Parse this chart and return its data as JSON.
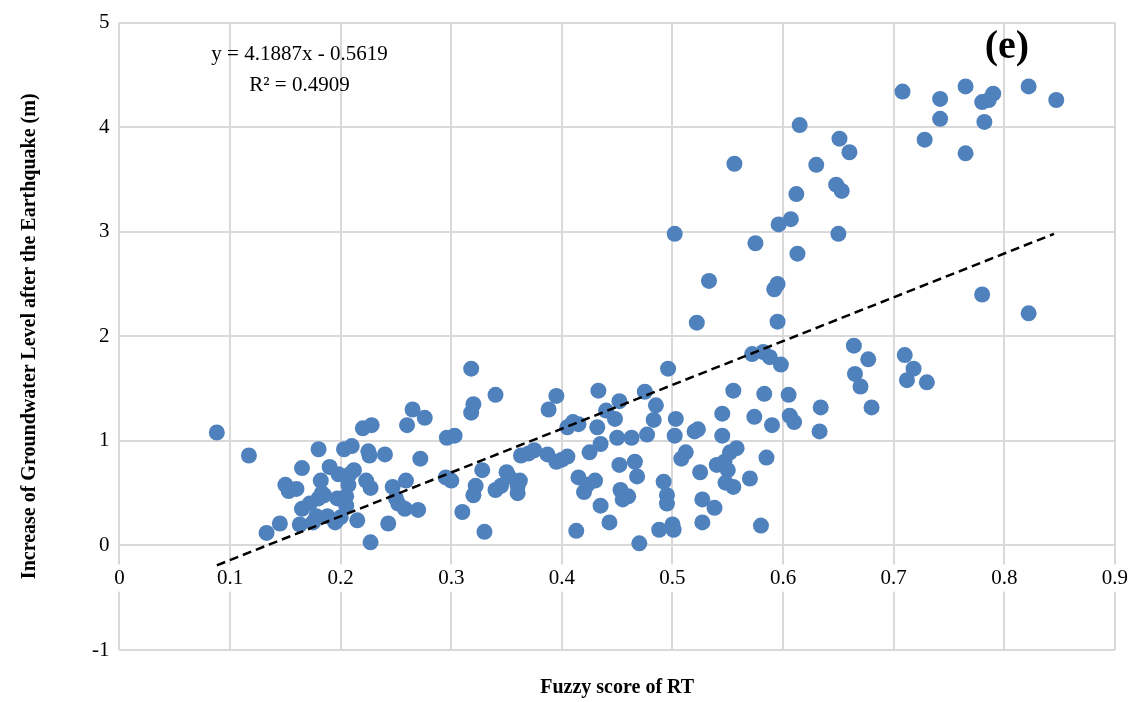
{
  "chart_data": {
    "type": "scatter",
    "xlabel": "Fuzzy score of RT",
    "ylabel": "Increase of Groundwater Level after the Earthquake (m)",
    "annotations": [
      "y = 4.1887x - 0.5619",
      "R² = 0.4909",
      "(e)"
    ],
    "xlim": [
      0,
      0.9
    ],
    "xticks": [
      0,
      0.1,
      0.2,
      0.3,
      0.4,
      0.5,
      0.6,
      0.7,
      0.8,
      0.9
    ],
    "ylim": [
      -1,
      5
    ],
    "yticks": [
      -1,
      0,
      1,
      2,
      3,
      4,
      5
    ],
    "grid": true,
    "legend": false,
    "marker": "circle",
    "series": [
      {
        "color": "#4f81bd",
        "x": [
          0.088,
          0.117,
          0.133,
          0.145,
          0.15,
          0.153,
          0.16,
          0.165,
          0.165,
          0.163,
          0.172,
          0.175,
          0.178,
          0.18,
          0.18,
          0.182,
          0.183,
          0.185,
          0.188,
          0.19,
          0.195,
          0.197,
          0.198,
          0.2,
          0.203,
          0.205,
          0.205,
          0.207,
          0.208,
          0.21,
          0.212,
          0.215,
          0.22,
          0.223,
          0.225,
          0.226,
          0.227,
          0.228,
          0.227,
          0.24,
          0.243,
          0.247,
          0.25,
          0.252,
          0.258,
          0.259,
          0.26,
          0.265,
          0.27,
          0.272,
          0.276,
          0.295,
          0.296,
          0.3,
          0.303,
          0.31,
          0.318,
          0.318,
          0.32,
          0.32,
          0.322,
          0.328,
          0.33,
          0.34,
          0.34,
          0.345,
          0.35,
          0.352,
          0.36,
          0.36,
          0.362,
          0.363,
          0.37,
          0.375,
          0.387,
          0.388,
          0.395,
          0.395,
          0.4,
          0.405,
          0.405,
          0.41,
          0.413,
          0.415,
          0.415,
          0.42,
          0.423,
          0.425,
          0.43,
          0.432,
          0.433,
          0.435,
          0.435,
          0.44,
          0.443,
          0.448,
          0.45,
          0.452,
          0.452,
          0.453,
          0.455,
          0.46,
          0.463,
          0.466,
          0.468,
          0.47,
          0.475,
          0.477,
          0.483,
          0.485,
          0.488,
          0.492,
          0.495,
          0.495,
          0.496,
          0.5,
          0.501,
          0.502,
          0.502,
          0.503,
          0.508,
          0.512,
          0.52,
          0.522,
          0.523,
          0.525,
          0.527,
          0.527,
          0.533,
          0.538,
          0.54,
          0.545,
          0.545,
          0.547,
          0.548,
          0.55,
          0.552,
          0.555,
          0.555,
          0.556,
          0.558,
          0.57,
          0.572,
          0.574,
          0.575,
          0.58,
          0.582,
          0.583,
          0.585,
          0.588,
          0.59,
          0.592,
          0.595,
          0.595,
          0.596,
          0.598,
          0.605,
          0.606,
          0.607,
          0.61,
          0.612,
          0.613,
          0.615,
          0.63,
          0.633,
          0.634,
          0.648,
          0.65,
          0.651,
          0.653,
          0.66,
          0.664,
          0.665,
          0.67,
          0.677,
          0.68,
          0.708,
          0.71,
          0.712,
          0.718,
          0.728,
          0.73,
          0.742,
          0.742,
          0.765,
          0.765,
          0.78,
          0.78,
          0.782,
          0.786,
          0.79,
          0.822,
          0.822,
          0.847
        ],
        "values": [
          1.08,
          0.86,
          0.12,
          0.21,
          0.58,
          0.52,
          0.54,
          0.74,
          0.35,
          0.2,
          0.4,
          0.22,
          0.28,
          0.45,
          0.92,
          0.62,
          0.5,
          0.48,
          0.28,
          0.75,
          0.22,
          0.45,
          0.68,
          0.27,
          0.92,
          0.38,
          0.47,
          0.58,
          0.68,
          0.95,
          0.72,
          0.24,
          1.12,
          0.62,
          0.9,
          0.86,
          0.55,
          1.15,
          0.03,
          0.87,
          0.21,
          0.56,
          0.45,
          0.4,
          0.35,
          0.62,
          1.15,
          1.3,
          0.34,
          0.83,
          1.22,
          0.65,
          1.03,
          0.62,
          1.05,
          0.32,
          1.69,
          1.27,
          1.35,
          0.48,
          0.57,
          0.72,
          0.13,
          1.44,
          0.53,
          0.57,
          0.7,
          0.66,
          0.5,
          0.57,
          0.62,
          0.86,
          0.88,
          0.91,
          0.87,
          1.3,
          1.43,
          0.8,
          0.82,
          0.85,
          1.13,
          1.18,
          0.14,
          1.16,
          0.65,
          0.51,
          0.58,
          0.89,
          0.62,
          1.13,
          1.48,
          0.97,
          0.38,
          1.29,
          0.22,
          1.21,
          1.03,
          0.77,
          1.38,
          0.53,
          0.44,
          0.47,
          1.03,
          0.8,
          0.66,
          0.02,
          1.47,
          1.06,
          1.2,
          1.34,
          0.15,
          0.61,
          0.48,
          0.4,
          1.69,
          0.2,
          0.15,
          2.98,
          1.05,
          1.21,
          0.83,
          0.89,
          1.09,
          2.13,
          1.11,
          0.7,
          0.44,
          0.22,
          2.53,
          0.36,
          0.77,
          1.05,
          1.26,
          0.8,
          0.6,
          0.72,
          0.89,
          0.56,
          1.48,
          3.65,
          0.93,
          0.64,
          1.83,
          1.23,
          2.89,
          0.19,
          1.85,
          1.45,
          0.84,
          1.8,
          1.15,
          2.45,
          2.5,
          2.14,
          3.07,
          1.73,
          1.44,
          1.24,
          3.12,
          1.18,
          3.36,
          2.79,
          4.02,
          3.64,
          1.09,
          1.32,
          3.45,
          2.98,
          3.89,
          3.39,
          3.76,
          1.91,
          1.64,
          1.52,
          1.78,
          1.32,
          4.34,
          1.82,
          1.58,
          1.69,
          3.88,
          1.56,
          4.27,
          4.08,
          4.39,
          3.75,
          4.24,
          2.4,
          4.05,
          4.26,
          4.32,
          4.39,
          2.22,
          4.26
        ]
      },
      {
        "type": "line",
        "color": "#000000",
        "line_style": "dashed",
        "marker": "none",
        "x": [
          0.088,
          0.845
        ],
        "values": [
          -0.19,
          2.98
        ]
      }
    ]
  }
}
